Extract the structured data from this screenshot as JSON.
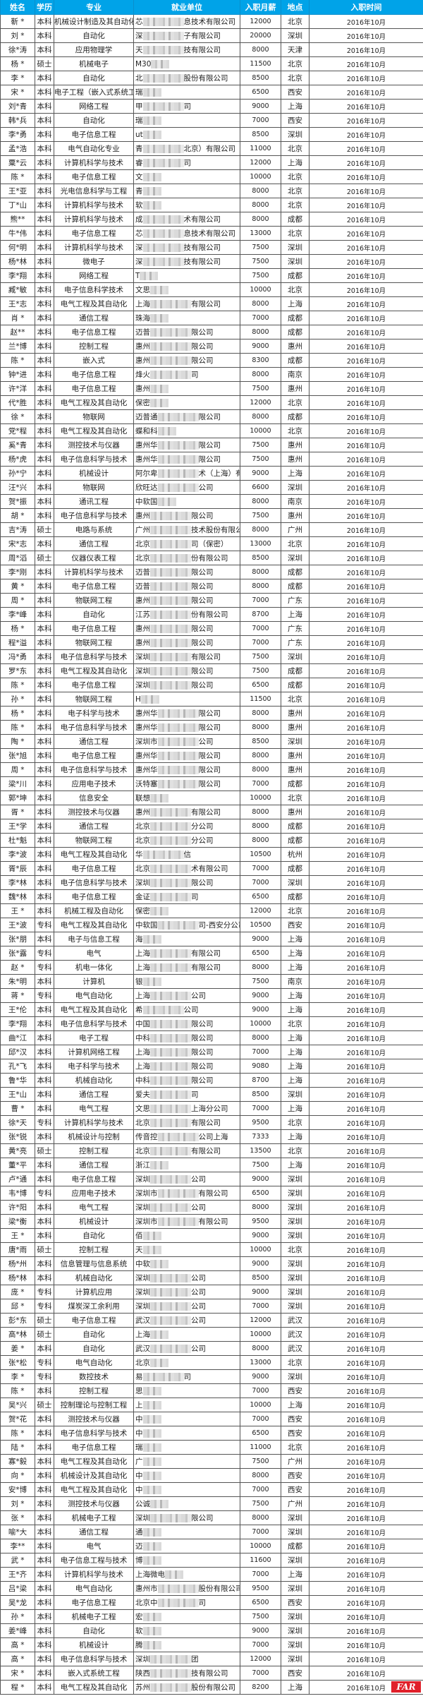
{
  "header": {
    "name": "姓名",
    "education": "学历",
    "major": "专业",
    "company": "就业单位",
    "salary": "入职月薪",
    "location": "地点",
    "date": "入职时间"
  },
  "colors": {
    "header_bg": "#00a3e8",
    "header_text": "#ffffff",
    "border": "#555555",
    "logo": "#e0202a"
  },
  "logo_text": "FAR",
  "rows": [
    [
      "靳 *",
      "本科",
      "机械设计制造及其自动化",
      "芯",
      "息技术有限公司",
      "12000",
      "北京",
      "2016年10月"
    ],
    [
      "刘 *",
      "本科",
      "自动化",
      "深",
      "子有限公司",
      "20000",
      "深圳",
      "2016年10月"
    ],
    [
      "徐*涛",
      "本科",
      "应用物理学",
      "天",
      "技有限公司",
      "8000",
      "天津",
      "2016年10月"
    ],
    [
      "杨 *",
      "硕士",
      "机械电子",
      "M30",
      "",
      "11500",
      "北京",
      "2016年10月"
    ],
    [
      "李 *",
      "本科",
      "自动化",
      "北",
      "股份有限公司",
      "8500",
      "北京",
      "2016年10月"
    ],
    [
      "宋 *",
      "本科",
      "电子工程（嵌入式系统工程）",
      "瑞",
      "",
      "6500",
      "西安",
      "2016年10月"
    ],
    [
      "刘*青",
      "本科",
      "网络工程",
      "甲",
      "司",
      "9000",
      "上海",
      "2016年10月"
    ],
    [
      "韩*兵",
      "本科",
      "自动化",
      "瑞",
      "",
      "7000",
      "西安",
      "2016年10月"
    ],
    [
      "李*勇",
      "本科",
      "电子信息工程",
      "ut",
      "",
      "8500",
      "深圳",
      "2016年10月"
    ],
    [
      "孟*浩",
      "本科",
      "电气自动化专业",
      "青",
      "北京）有限公司",
      "11000",
      "北京",
      "2016年10月"
    ],
    [
      "粟*云",
      "本科",
      "计算机科学与技术",
      "睿",
      "司",
      "12000",
      "上海",
      "2016年10月"
    ],
    [
      "陈 *",
      "本科",
      "电子信息工程",
      "文",
      "",
      "10000",
      "北京",
      "2016年10月"
    ],
    [
      "王*亚",
      "本科",
      "光电信息科学与工程",
      "青",
      "",
      "8000",
      "北京",
      "2016年10月"
    ],
    [
      "丁*山",
      "本科",
      "计算机科学与技术",
      "软",
      "",
      "8000",
      "北京",
      "2016年10月"
    ],
    [
      "熊**",
      "本科",
      "计算机科学与技术",
      "成",
      "术有限公司",
      "8000",
      "成都",
      "2016年10月"
    ],
    [
      "牛*伟",
      "本科",
      "电子信息工程",
      "芯",
      "息技术有限公司",
      "13000",
      "北京",
      "2016年10月"
    ],
    [
      "何*明",
      "本科",
      "计算机科学与技术",
      "深",
      "技有限公司",
      "7500",
      "深圳",
      "2016年10月"
    ],
    [
      "杨*林",
      "本科",
      "微电子",
      "深",
      "技有限公司",
      "7500",
      "深圳",
      "2016年10月"
    ],
    [
      "李*翔",
      "本科",
      "网络工程",
      "T",
      "",
      "7500",
      "成都",
      "2016年10月"
    ],
    [
      "臧*敏",
      "本科",
      "电子信息科学技术",
      "文思",
      "",
      "10000",
      "北京",
      "2016年10月"
    ],
    [
      "王*志",
      "本科",
      "电气工程及其自动化",
      "上海",
      "有限公司",
      "8000",
      "上海",
      "2016年10月"
    ],
    [
      "肖 *",
      "本科",
      "通信工程",
      "珠海",
      "",
      "7000",
      "成都",
      "2016年10月"
    ],
    [
      "赵**",
      "本科",
      "电子信息工程",
      "迈普",
      "限公司",
      "8000",
      "成都",
      "2016年10月"
    ],
    [
      "兰*博",
      "本科",
      "控制工程",
      "惠州",
      "限公司",
      "9000",
      "惠州",
      "2016年10月"
    ],
    [
      "陈 *",
      "本科",
      "嵌入式",
      "惠州",
      "限公司",
      "8300",
      "成都",
      "2016年10月"
    ],
    [
      "钟*进",
      "本科",
      "电子信息工程",
      "烽火",
      "司",
      "8000",
      "南京",
      "2016年10月"
    ],
    [
      "许*洋",
      "本科",
      "电子信息工程",
      "惠州",
      "",
      "7500",
      "惠州",
      "2016年10月"
    ],
    [
      "代*胜",
      "本科",
      "电气工程及其自动化",
      "保密",
      "",
      "12000",
      "北京",
      "2016年10月"
    ],
    [
      "徐 *",
      "本科",
      "物联网",
      "迈普通",
      "限公司",
      "8000",
      "成都",
      "2016年10月"
    ],
    [
      "党*程",
      "本科",
      "电气工程及其自动化",
      "蝶和科",
      "",
      "10000",
      "北京",
      "2016年10月"
    ],
    [
      "奚*青",
      "本科",
      "测控技术与仪器",
      "惠州华",
      "限公司",
      "7500",
      "惠州",
      "2016年10月"
    ],
    [
      "杨*虎",
      "本科",
      "电子信息科学与技术",
      "惠州华",
      "限公司",
      "7500",
      "惠州",
      "2016年10月"
    ],
    [
      "孙*宁",
      "本科",
      "机械设计",
      "阿尔卑",
      "术（上海）有限公司",
      "9000",
      "上海",
      "2016年10月"
    ],
    [
      "汪*兴",
      "本科",
      "物联网",
      "欣旺达",
      "公司",
      "6600",
      "深圳",
      "2016年10月"
    ],
    [
      "贺*振",
      "本科",
      "通讯工程",
      "中软国",
      "",
      "8000",
      "南京",
      "2016年10月"
    ],
    [
      "胡 *",
      "本科",
      "电子信息科学与技术",
      "惠州",
      "限公司",
      "7500",
      "惠州",
      "2016年10月"
    ],
    [
      "吉*涛",
      "硕士",
      "电路与系统",
      "广州",
      "技术股份有限公司",
      "8000",
      "广州",
      "2016年10月"
    ],
    [
      "宋*志",
      "本科",
      "通信工程",
      "北京",
      "司（保密）",
      "13000",
      "北京",
      "2016年10月"
    ],
    [
      "周*滔",
      "硕士",
      "仪器仪表工程",
      "北京",
      "份有限公司",
      "8500",
      "深圳",
      "2016年10月"
    ],
    [
      "李*刚",
      "本科",
      "计算机科学与技术",
      "迈普",
      "限公司",
      "8000",
      "成都",
      "2016年10月"
    ],
    [
      "黄 *",
      "本科",
      "电子信息工程",
      "迈普",
      "限公司",
      "8000",
      "成都",
      "2016年10月"
    ],
    [
      "周 *",
      "本科",
      "物联网工程",
      "惠州",
      "限公司",
      "7000",
      "广东",
      "2016年10月"
    ],
    [
      "李*峰",
      "本科",
      "自动化",
      "江苏",
      "份有限公司",
      "8700",
      "上海",
      "2016年10月"
    ],
    [
      "杨 *",
      "本科",
      "电子信息工程",
      "惠州",
      "限公司",
      "7000",
      "广东",
      "2016年10月"
    ],
    [
      "程*溢",
      "本科",
      "物联网工程",
      "惠州",
      "限公司",
      "7000",
      "广东",
      "2016年10月"
    ],
    [
      "冯*勇",
      "本科",
      "电子信息科学与技术",
      "深圳",
      "有限公司",
      "7500",
      "深圳",
      "2016年10月"
    ],
    [
      "罗*东",
      "本科",
      "电气工程及其自动化",
      "深圳",
      "限公司",
      "7500",
      "成都",
      "2016年10月"
    ],
    [
      "陈 *",
      "本科",
      "电子信息工程",
      "深圳",
      "限公司",
      "6500",
      "成都",
      "2016年10月"
    ],
    [
      "孙 *",
      "本科",
      "物联网工程",
      "H",
      "",
      "11500",
      "北京",
      "2016年10月"
    ],
    [
      "杨 *",
      "本科",
      "电子科学与技术",
      "惠州华",
      "限公司",
      "8000",
      "惠州",
      "2016年10月"
    ],
    [
      "陈 *",
      "本科",
      "电子信息科学与技术",
      "惠州华",
      "限公司",
      "8000",
      "惠州",
      "2016年10月"
    ],
    [
      "陶 *",
      "本科",
      "通信工程",
      "深圳市",
      "公司",
      "8500",
      "深圳",
      "2016年10月"
    ],
    [
      "张*旭",
      "本科",
      "电子信息工程",
      "惠州华",
      "限公司",
      "8000",
      "惠州",
      "2016年10月"
    ],
    [
      "周 *",
      "本科",
      "电子信息科学与技术",
      "惠州华",
      "限公司",
      "8000",
      "惠州",
      "2016年10月"
    ],
    [
      "梁*川",
      "本科",
      "应用电子技术",
      "沃特塞",
      "限公司",
      "7000",
      "成都",
      "2016年10月"
    ],
    [
      "郭*坤",
      "本科",
      "信息安全",
      "联想",
      "",
      "10000",
      "北京",
      "2016年10月"
    ],
    [
      "胥 *",
      "本科",
      "测控技术与仪器",
      "惠州",
      "有限公司",
      "8000",
      "惠州",
      "2016年10月"
    ],
    [
      "王*学",
      "本科",
      "通信工程",
      "北京",
      "分公司",
      "8000",
      "成都",
      "2016年10月"
    ],
    [
      "杜*魁",
      "本科",
      "物联网工程",
      "北京",
      "分公司",
      "8000",
      "成都",
      "2016年10月"
    ],
    [
      "李*波",
      "本科",
      "电气工程及其自动化",
      "华",
      "信",
      "10500",
      "杭州",
      "2016年10月"
    ],
    [
      "胥*辰",
      "本科",
      "电子信息工程",
      "北京",
      "术有限公司",
      "7000",
      "成都",
      "2016年10月"
    ],
    [
      "李*林",
      "本科",
      "电子信息科学与技术",
      "深圳",
      "限公司",
      "7000",
      "深圳",
      "2016年10月"
    ],
    [
      "魏*林",
      "本科",
      "电子信息工程",
      "金证",
      "司",
      "6500",
      "成都",
      "2016年10月"
    ],
    [
      "王 *",
      "本科",
      "机械工程及自动化",
      "保密",
      "",
      "12000",
      "北京",
      "2016年10月"
    ],
    [
      "王*波",
      "专科",
      "电气工程及其自动化",
      "中软国",
      "司-西安分公司",
      "10500",
      "西安",
      "2016年10月"
    ],
    [
      "张*朋",
      "本科",
      "电子与信息工程",
      "海",
      "",
      "9000",
      "上海",
      "2016年10月"
    ],
    [
      "张*露",
      "专科",
      "电气",
      "上海",
      "有限公司",
      "6500",
      "上海",
      "2016年10月"
    ],
    [
      "赵 *",
      "专科",
      "机电一体化",
      "上海",
      "有限公司",
      "8000",
      "上海",
      "2016年10月"
    ],
    [
      "朱*明",
      "本科",
      "计算机",
      "银",
      "",
      "7500",
      "南京",
      "2016年10月"
    ],
    [
      "蒋 *",
      "专科",
      "电气自动化",
      "上海",
      "公司",
      "9000",
      "上海",
      "2016年10月"
    ],
    [
      "王*伦",
      "本科",
      "电气工程及其自动化",
      "希",
      "公司",
      "9000",
      "上海",
      "2016年10月"
    ],
    [
      "李*翔",
      "本科",
      "电子信息科学与技术",
      "中国",
      "限公司",
      "10000",
      "北京",
      "2016年10月"
    ],
    [
      "曲*江",
      "本科",
      "电子工程",
      "中科",
      "限公司",
      "8000",
      "上海",
      "2016年10月"
    ],
    [
      "邱*汉",
      "本科",
      "计算机网络工程",
      "上海",
      "限公司",
      "7000",
      "上海",
      "2016年10月"
    ],
    [
      "孔*飞",
      "本科",
      "电子科学与技术",
      "上海",
      "限公司",
      "9080",
      "上海",
      "2016年10月"
    ],
    [
      "鲁*华",
      "本科",
      "机械自动化",
      "中科",
      "限公司",
      "8700",
      "上海",
      "2016年10月"
    ],
    [
      "王*山",
      "本科",
      "通信工程",
      "爱夫",
      "司",
      "8500",
      "深圳",
      "2016年10月"
    ],
    [
      "曹 *",
      "本科",
      "电气工程",
      "文思",
      "上海分公司",
      "7000",
      "上海",
      "2016年10月"
    ],
    [
      "徐*天",
      "专科",
      "计算机科学与技术",
      "北京",
      "有限公司",
      "9500",
      "北京",
      "2016年10月"
    ],
    [
      "张*锐",
      "本科",
      "机械设计与控制",
      "传音控",
      "公司上海",
      "7333",
      "上海",
      "2016年10月"
    ],
    [
      "黄*亮",
      "硕士",
      "控制工程",
      "北京",
      "有限公司",
      "13500",
      "北京",
      "2016年10月"
    ],
    [
      "董*平",
      "本科",
      "通信工程",
      "浙江",
      "",
      "7500",
      "上海",
      "2016年10月"
    ],
    [
      "卢*通",
      "本科",
      "电子信息工程",
      "深圳",
      "公司",
      "9000",
      "深圳",
      "2016年10月"
    ],
    [
      "韦*博",
      "专科",
      "应用电子技术",
      "深圳市",
      "有限公司",
      "6500",
      "深圳",
      "2016年10月"
    ],
    [
      "许*阳",
      "本科",
      "电气工程",
      "深圳",
      "公司",
      "8000",
      "深圳",
      "2016年10月"
    ],
    [
      "梁*衡",
      "本科",
      "机械设计",
      "深圳市",
      "有限公司",
      "9500",
      "深圳",
      "2016年10月"
    ],
    [
      "王 *",
      "本科",
      "自动化",
      "佰",
      "",
      "9000",
      "深圳",
      "2016年10月"
    ],
    [
      "唐*雨",
      "硕士",
      "控制工程",
      "天",
      "",
      "10000",
      "北京",
      "2016年10月"
    ],
    [
      "杨*州",
      "本科",
      "信息管理与信息系统",
      "中软",
      "",
      "9000",
      "深圳",
      "2016年10月"
    ],
    [
      "杨*林",
      "本科",
      "机械自动化",
      "深圳",
      "公司",
      "8500",
      "深圳",
      "2016年10月"
    ],
    [
      "庞 *",
      "专科",
      "计算机应用",
      "深圳",
      "公司",
      "9000",
      "深圳",
      "2016年10月"
    ],
    [
      "邱 *",
      "专科",
      "煤炭深工余利用",
      "深圳",
      "公司",
      "7000",
      "深圳",
      "2016年10月"
    ],
    [
      "彭*东",
      "硕士",
      "电子信息工程",
      "武汉",
      "公司",
      "12000",
      "武汉",
      "2016年10月"
    ],
    [
      "高*林",
      "硕士",
      "自动化",
      "上海",
      "",
      "10000",
      "武汉",
      "2016年10月"
    ],
    [
      "姜 *",
      "本科",
      "自动化",
      "武汉",
      "公司",
      "8000",
      "武汉",
      "2016年10月"
    ],
    [
      "张*松",
      "专科",
      "电气自动化",
      "北京",
      "",
      "13000",
      "北京",
      "2016年10月"
    ],
    [
      "李 *",
      "专科",
      "数控技术",
      "易",
      "司",
      "9000",
      "深圳",
      "2016年10月"
    ],
    [
      "陈 *",
      "本科",
      "控制工程",
      "思",
      "",
      "7000",
      "西安",
      "2016年10月"
    ],
    [
      "吴*兴",
      "硕士",
      "控制理论与控制工程",
      "上",
      "",
      "10000",
      "上海",
      "2016年10月"
    ],
    [
      "贺*花",
      "本科",
      "测控技术与仪器",
      "中",
      "",
      "7000",
      "西安",
      "2016年10月"
    ],
    [
      "陈 *",
      "本科",
      "电子信息科学与技术",
      "中",
      "",
      "6500",
      "西安",
      "2016年10月"
    ],
    [
      "陆 *",
      "本科",
      "电子信息工程",
      "瑞",
      "",
      "11000",
      "北京",
      "2016年10月"
    ],
    [
      "寡*毅",
      "本科",
      "电气工程及其自动化",
      "广",
      "",
      "7500",
      "广州",
      "2016年10月"
    ],
    [
      "向 *",
      "本科",
      "机械设计及其自动化",
      "中",
      "",
      "8000",
      "西安",
      "2016年10月"
    ],
    [
      "安*博",
      "本科",
      "电气工程及其自动化",
      "中",
      "",
      "7000",
      "西安",
      "2016年10月"
    ],
    [
      "刘 *",
      "本科",
      "测控技术与仪器",
      "公诚",
      "",
      "7500",
      "广州",
      "2016年10月"
    ],
    [
      "张 *",
      "本科",
      "机械电子工程",
      "深圳",
      "限公司",
      "8000",
      "深圳",
      "2016年10月"
    ],
    [
      "喻*大",
      "本科",
      "通信工程",
      "通",
      "",
      "7000",
      "深圳",
      "2016年10月"
    ],
    [
      "李**",
      "本科",
      "电气",
      "迈",
      "",
      "10000",
      "成都",
      "2016年10月"
    ],
    [
      "武 *",
      "本科",
      "电子信息工程与技术",
      "博",
      "",
      "11600",
      "深圳",
      "2016年10月"
    ],
    [
      "王*齐",
      "本科",
      "计算机科学与技术",
      "上海微电",
      "",
      "7000",
      "上海",
      "2016年10月"
    ],
    [
      "吕*梁",
      "本科",
      "电气自动化",
      "惠州市",
      "股份有限公司",
      "9500",
      "深圳",
      "2016年10月"
    ],
    [
      "吴*龙",
      "本科",
      "电子信息工程",
      "北京中",
      "司",
      "6500",
      "西安",
      "2016年10月"
    ],
    [
      "孙 *",
      "本科",
      "机械电子工程",
      "宏",
      "",
      "7500",
      "深圳",
      "2016年10月"
    ],
    [
      "姜*峰",
      "本科",
      "自动化",
      "软",
      "",
      "9000",
      "深圳",
      "2016年10月"
    ],
    [
      "高 *",
      "本科",
      "机械设计",
      "腾",
      "",
      "7000",
      "深圳",
      "2016年10月"
    ],
    [
      "高 *",
      "本科",
      "电子信息科学与技术",
      "深圳",
      "团",
      "12000",
      "深圳",
      "2016年10月"
    ],
    [
      "宋 *",
      "本科",
      "嵌入式系统工程",
      "陕西",
      "技有限公司",
      "7000",
      "西安",
      "2016年10月"
    ],
    [
      "程 *",
      "本科",
      "电气工程及其自动化",
      "苏州",
      "股份有限公司",
      "8200",
      "上海",
      "2016年10月"
    ]
  ]
}
